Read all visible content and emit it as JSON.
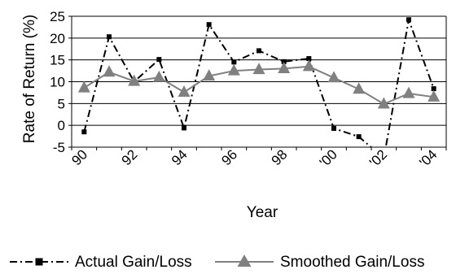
{
  "chart_data": {
    "type": "line",
    "title": "",
    "xlabel": "Year",
    "ylabel": "Rate of Return (%)",
    "ylim": [
      -5,
      25
    ],
    "yticks": [
      -5,
      0,
      5,
      10,
      15,
      20,
      25
    ],
    "grid": "horizontal",
    "legend": "bottom",
    "x": [
      1990,
      1991,
      1992,
      1993,
      1994,
      1995,
      1996,
      1997,
      1998,
      1999,
      2000,
      2001,
      2002,
      2003,
      2004
    ],
    "xtick_labels": [
      "90",
      "92",
      "94",
      "96",
      "98",
      "'00",
      "'02",
      "'04"
    ],
    "xtick_years": [
      1990,
      1992,
      1994,
      1996,
      1998,
      2000,
      2002,
      2004
    ],
    "series": [
      {
        "name": "Actual Gain/Loss",
        "style": "dash-dot",
        "color": "#000000",
        "marker": "square",
        "values": [
          -1.5,
          20.3,
          10.0,
          15.1,
          -0.6,
          23.1,
          14.5,
          17.1,
          14.6,
          15.3,
          -0.7,
          -2.6,
          -7.5,
          24.2,
          8.4
        ]
      },
      {
        "name": "Smoothed Gain/Loss",
        "style": "solid",
        "color": "#808080",
        "marker": "triangle",
        "values": [
          8.6,
          12.2,
          10.1,
          11.0,
          7.6,
          11.3,
          12.5,
          12.8,
          13.0,
          13.5,
          10.9,
          8.3,
          4.9,
          7.3,
          6.5
        ]
      }
    ]
  }
}
